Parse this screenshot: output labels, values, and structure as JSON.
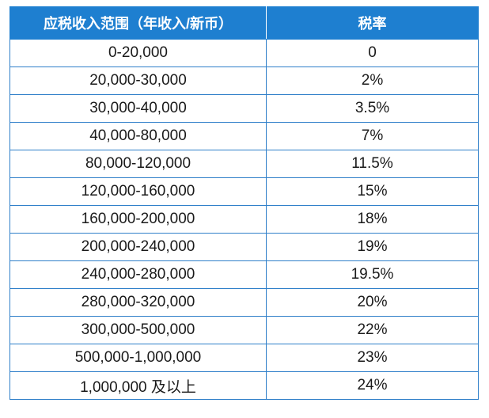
{
  "table": {
    "headers": [
      "应税收入范围（年收入/新币）",
      "税率"
    ],
    "rows": [
      [
        "0-20,000",
        "0"
      ],
      [
        "20,000-30,000",
        "2%"
      ],
      [
        "30,000-40,000",
        "3.5%"
      ],
      [
        "40,000-80,000",
        "7%"
      ],
      [
        "80,000-120,000",
        "11.5%"
      ],
      [
        "120,000-160,000",
        "15%"
      ],
      [
        "160,000-200,000",
        "18%"
      ],
      [
        "200,000-240,000",
        "19%"
      ],
      [
        "240,000-280,000",
        "19.5%"
      ],
      [
        "280,000-320,000",
        "20%"
      ],
      [
        "300,000-500,000",
        "22%"
      ],
      [
        "500,000-1,000,000",
        "23%"
      ],
      [
        "1,000,000 及以上",
        "24%"
      ]
    ]
  },
  "colors": {
    "header_bg": "#1e7fd0",
    "header_text": "#ffffff",
    "border": "#2f7fc9"
  }
}
